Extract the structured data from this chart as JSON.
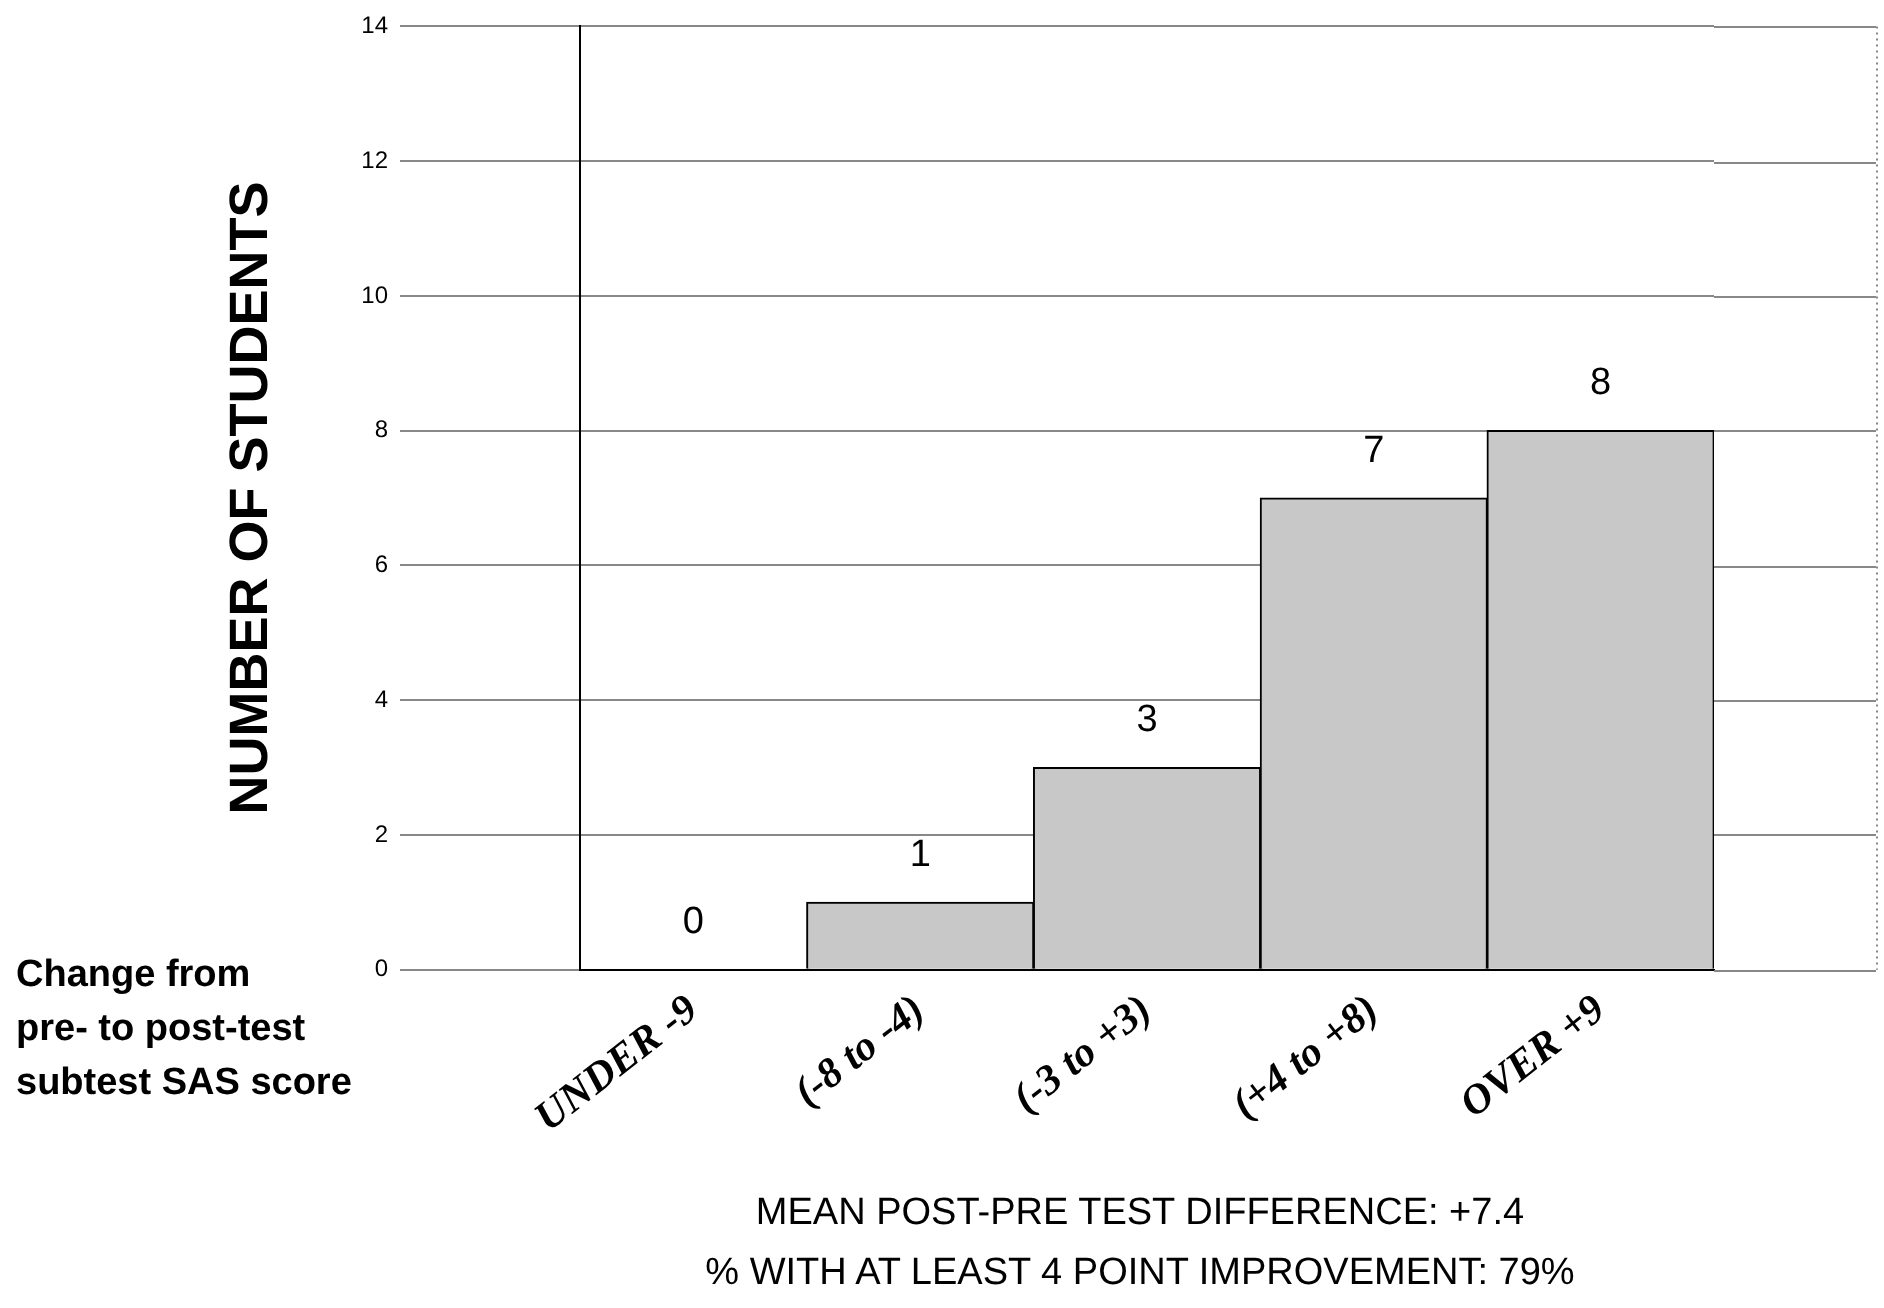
{
  "chart_data": {
    "type": "bar",
    "ylabel": "NUMBER OF STUDENTS",
    "xlabel": "Change from\npre- to post-test\nsubtest SAS score",
    "categories": [
      "UNDER -9",
      "(-8 to -4)",
      "(-3 to +3)",
      "(+4 to +8)",
      "OVER +9"
    ],
    "values": [
      0,
      1,
      3,
      7,
      8
    ],
    "color": "#c8c8c8",
    "ylim": [
      0,
      14
    ],
    "yticks": [
      0,
      2,
      4,
      6,
      8,
      10,
      12,
      14
    ],
    "grid": "y",
    "data_labels": true,
    "annotations": [
      "MEAN POST-PRE TEST DIFFERENCE: +7.4",
      "% WITH AT LEAST 4 POINT IMPROVEMENT:  79%"
    ]
  }
}
